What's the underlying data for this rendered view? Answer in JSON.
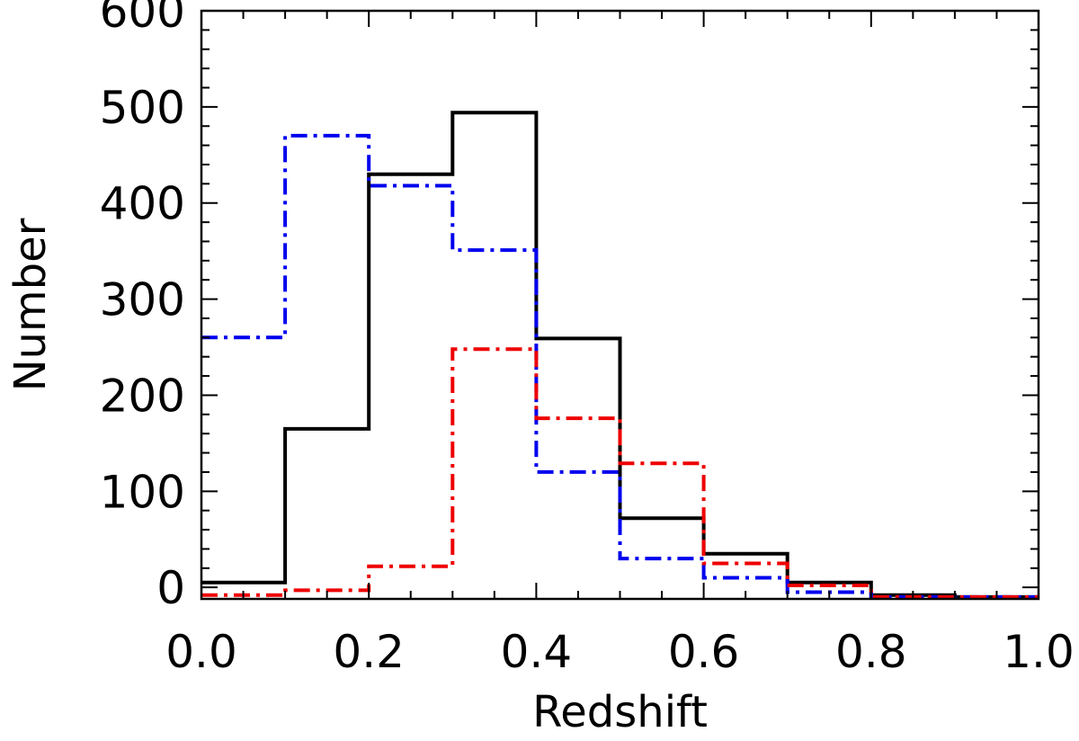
{
  "chart_data": {
    "type": "histogram",
    "title": "",
    "xlabel": "Redshift",
    "ylabel": "Number",
    "xlim": [
      0.0,
      1.0
    ],
    "ylim": [
      -12,
      600
    ],
    "bin_edges": [
      0.0,
      0.1,
      0.2,
      0.3,
      0.4,
      0.5,
      0.6,
      0.7,
      0.8,
      0.9,
      1.0
    ],
    "x_major_ticks": [
      0.0,
      0.2,
      0.4,
      0.6,
      0.8,
      1.0
    ],
    "x_tick_labels": [
      "0.0",
      "0.2",
      "0.4",
      "0.6",
      "0.8",
      "1.0"
    ],
    "x_minor_step": 0.05,
    "y_major_ticks": [
      0,
      100,
      200,
      300,
      400,
      500,
      600
    ],
    "y_tick_labels": [
      "0",
      "100",
      "200",
      "300",
      "400",
      "500",
      "600"
    ],
    "y_minor_step": 20,
    "series": [
      {
        "name": "black-solid",
        "color": "#000000",
        "style": "solid",
        "values": [
          5,
          165,
          430,
          494,
          259,
          72,
          35,
          5,
          -8,
          -10
        ]
      },
      {
        "name": "blue-dash-dot",
        "color": "#0000ee",
        "style": "dashdot",
        "values": [
          260,
          470,
          418,
          351,
          120,
          30,
          10,
          -5,
          -10,
          -10
        ]
      },
      {
        "name": "red-dash-dot",
        "color": "#ee0000",
        "style": "dashdot",
        "values": [
          -8,
          -3,
          22,
          248,
          176,
          129,
          25,
          2,
          -10,
          -10
        ]
      }
    ]
  }
}
